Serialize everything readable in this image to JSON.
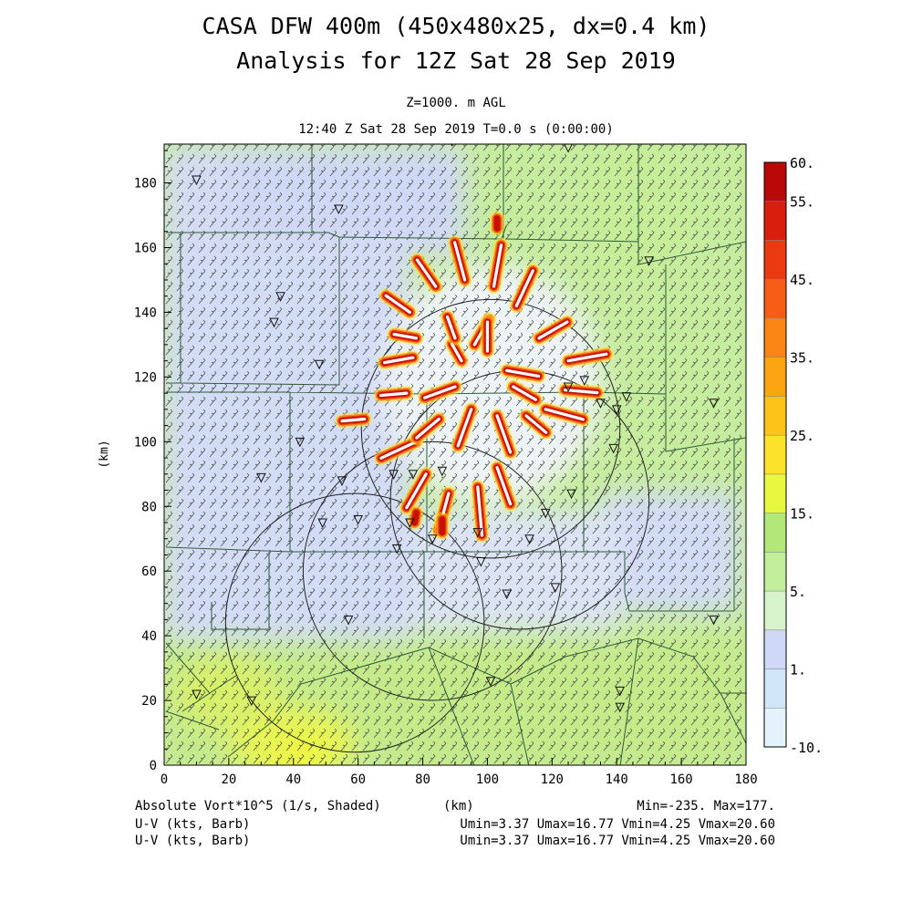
{
  "title": "CASA DFW 400m (450x480x25, dx=0.4 km)",
  "subtitle": "Analysis for 12Z Sat 28 Sep 2019",
  "level": "Z=1000. m AGL",
  "time": "12:40 Z Sat 28 Sep 2019    T=0.0 s (0:00:00)",
  "footer": {
    "field1": "Absolute Vort*10^5 (1/s, Shaded)",
    "field2": "U-V (kts, Barb)",
    "field3": "U-V (kts, Barb)",
    "xunit": "(km)",
    "minmax": "Min=-235. Max=177.",
    "range2": "Umin=3.37 Umax=16.77 Vmin=4.25 Vmax=20.60",
    "range3": "Umin=3.37 Umax=16.77 Vmin=4.25 Vmax=20.60"
  },
  "chart_data": {
    "type": "heatmap",
    "xlabel": "(km)",
    "ylabel": "(km)",
    "xlim": [
      0,
      180
    ],
    "ylim": [
      0,
      192
    ],
    "xticks": [
      0,
      20,
      40,
      60,
      80,
      100,
      120,
      140,
      160,
      180
    ],
    "yticks": [
      0,
      20,
      40,
      60,
      80,
      100,
      120,
      140,
      160,
      180
    ],
    "colorbar": {
      "levels": [
        -10,
        0,
        1,
        3,
        5,
        10,
        15,
        20,
        25,
        30,
        35,
        40,
        45,
        50,
        55,
        60
      ],
      "labels": [
        "-10.",
        "1.",
        "5.",
        "15.",
        "25.",
        "35.",
        "45.",
        "55.",
        "60."
      ],
      "label_values": [
        -10,
        1,
        5,
        15,
        25,
        35,
        45,
        55,
        60
      ],
      "colors": [
        "#e4f3fb",
        "#cfe6f6",
        "#cfd9f7",
        "#d6f3cb",
        "#c3ee9c",
        "#b1e879",
        "#e8f740",
        "#fde22a",
        "#fdc318",
        "#fba512",
        "#f98614",
        "#f65c16",
        "#e93a12",
        "#d81e0c",
        "#b80807"
      ]
    },
    "radar_rings": [
      {
        "cx": 101,
        "cy": 104,
        "r": 40
      },
      {
        "cx": 110,
        "cy": 82,
        "r": 40
      },
      {
        "cx": 83,
        "cy": 60,
        "r": 40
      },
      {
        "cx": 59,
        "cy": 44,
        "r": 40
      }
    ],
    "station_markers": [
      [
        10,
        181
      ],
      [
        54,
        172
      ],
      [
        36,
        145
      ],
      [
        34,
        137
      ],
      [
        89,
        193
      ],
      [
        125,
        191
      ],
      [
        150,
        156
      ],
      [
        170,
        112
      ],
      [
        125,
        117
      ],
      [
        130,
        119
      ],
      [
        140,
        110
      ],
      [
        143,
        114
      ],
      [
        135,
        112
      ],
      [
        30,
        89
      ],
      [
        42,
        100
      ],
      [
        55,
        88
      ],
      [
        77,
        90
      ],
      [
        60,
        76
      ],
      [
        71,
        90
      ],
      [
        86,
        91
      ],
      [
        83,
        70
      ],
      [
        97,
        72
      ],
      [
        98,
        63
      ],
      [
        113,
        70
      ],
      [
        118,
        78
      ],
      [
        126,
        84
      ],
      [
        106,
        53
      ],
      [
        121,
        55
      ],
      [
        139,
        98
      ],
      [
        141,
        23
      ],
      [
        141,
        18
      ],
      [
        170,
        45
      ],
      [
        10,
        22
      ],
      [
        27,
        20
      ],
      [
        57,
        45
      ],
      [
        101,
        26
      ],
      [
        49,
        75
      ],
      [
        76,
        75
      ],
      [
        72,
        67
      ],
      [
        48,
        124
      ]
    ],
    "vortex_spokes": [
      {
        "x": 77,
        "y": 126,
        "len": 9,
        "ang": 190
      },
      {
        "x": 75,
        "y": 115,
        "len": 8,
        "ang": 185
      },
      {
        "x": 62,
        "y": 107,
        "len": 7,
        "ang": 185
      },
      {
        "x": 78,
        "y": 100,
        "len": 12,
        "ang": 205
      },
      {
        "x": 81,
        "y": 90,
        "len": 12,
        "ang": 240
      },
      {
        "x": 88,
        "y": 84,
        "len": 12,
        "ang": 255
      },
      {
        "x": 97,
        "y": 86,
        "len": 15,
        "ang": 275
      },
      {
        "x": 103,
        "y": 92,
        "len": 12,
        "ang": 290
      },
      {
        "x": 112,
        "y": 108,
        "len": 8,
        "ang": 320
      },
      {
        "x": 118,
        "y": 110,
        "len": 12,
        "ang": 345
      },
      {
        "x": 124,
        "y": 116,
        "len": 10,
        "ang": 355
      },
      {
        "x": 125,
        "y": 125,
        "len": 12,
        "ang": 10
      },
      {
        "x": 116,
        "y": 132,
        "len": 10,
        "ang": 30
      },
      {
        "x": 109,
        "y": 142,
        "len": 12,
        "ang": 65
      },
      {
        "x": 102,
        "y": 148,
        "len": 13,
        "ang": 80
      },
      {
        "x": 93,
        "y": 150,
        "len": 12,
        "ang": 105
      },
      {
        "x": 84,
        "y": 148,
        "len": 10,
        "ang": 125
      },
      {
        "x": 76,
        "y": 140,
        "len": 9,
        "ang": 145
      },
      {
        "x": 78,
        "y": 132,
        "len": 7,
        "ang": 170
      },
      {
        "x": 96,
        "y": 130,
        "len": 9,
        "ang": 60
      },
      {
        "x": 100,
        "y": 128,
        "len": 9,
        "ang": 90
      },
      {
        "x": 92,
        "y": 125,
        "len": 6,
        "ang": 120
      },
      {
        "x": 90,
        "y": 117,
        "len": 10,
        "ang": 200
      },
      {
        "x": 85,
        "y": 107,
        "len": 9,
        "ang": 220
      },
      {
        "x": 95,
        "y": 110,
        "len": 12,
        "ang": 250
      },
      {
        "x": 103,
        "y": 108,
        "len": 12,
        "ang": 290
      },
      {
        "x": 106,
        "y": 122,
        "len": 10,
        "ang": 350
      },
      {
        "x": 108,
        "y": 117,
        "len": 8,
        "ang": 330
      },
      {
        "x": 90,
        "y": 132,
        "len": 7,
        "ang": 110
      },
      {
        "x": 78,
        "y": 78,
        "len": 3,
        "ang": 260
      },
      {
        "x": 86,
        "y": 76,
        "len": 4,
        "ang": 270
      },
      {
        "x": 103,
        "y": 166,
        "len": 3,
        "ang": 90
      }
    ]
  }
}
